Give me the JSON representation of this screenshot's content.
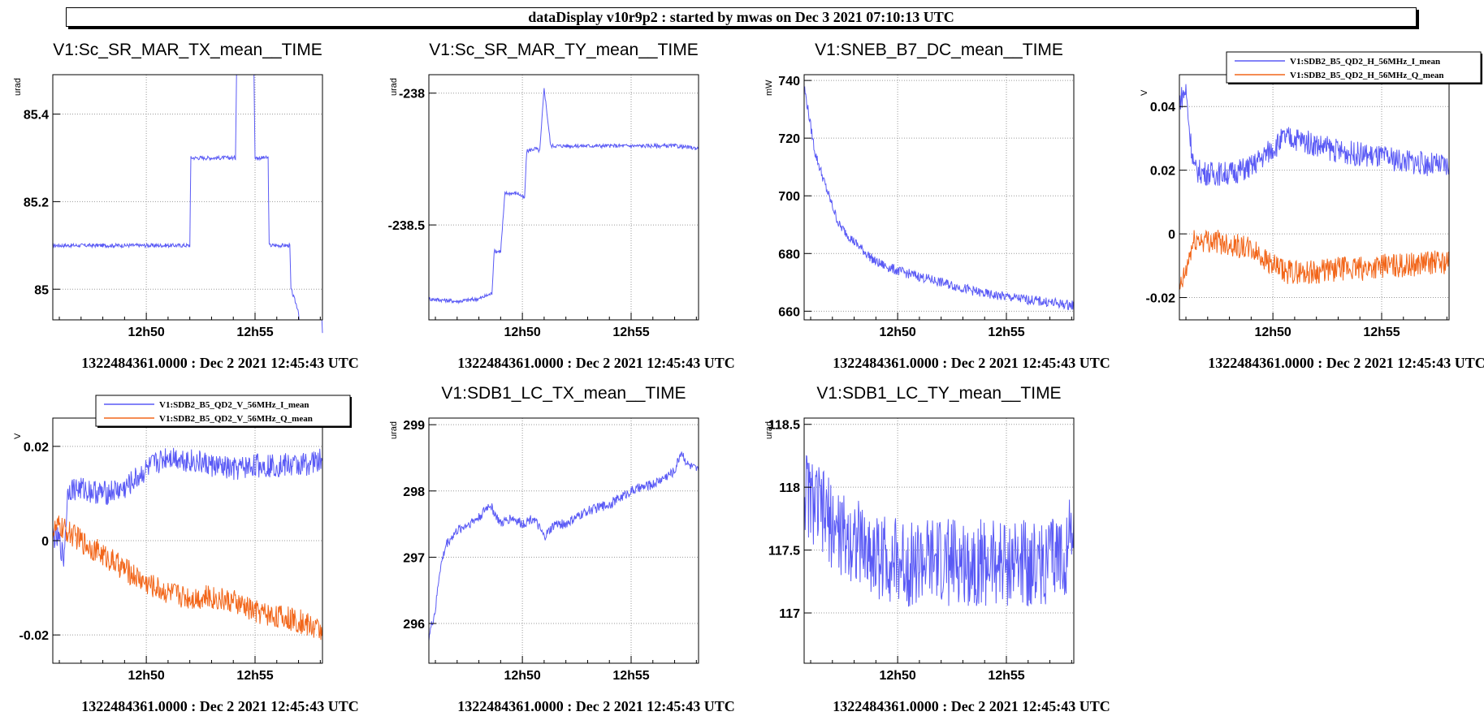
{
  "header": {
    "title": "dataDisplay v10r9p2 : started by mwas on Dec  3 2021 07:10:13 UTC"
  },
  "colors": {
    "series_blue": "#5a5af5",
    "series_orange": "#f2661a",
    "grid": "#9a9a9a",
    "frame": "#000000"
  },
  "chart_data": [
    {
      "type": "line",
      "title": "V1:Sc_SR_MAR_TX_mean__TIME",
      "ylabel": "urad",
      "xlabel": "1322484361.0000 : Dec  2 2021 12:45:43 UTC",
      "x_ticks": [
        "12h50",
        "12h55"
      ],
      "y_ticks": [
        "85",
        "85.2",
        "85.4"
      ],
      "xlim_min": [
        45.7,
        58.1
      ],
      "ylim": [
        84.93,
        85.49
      ],
      "series": [
        {
          "color": "#5a5af5",
          "x": [
            45.7,
            52.0,
            52.05,
            54.1,
            54.15,
            54.95,
            55.0,
            55.6,
            55.65,
            56.6,
            56.65,
            57.0,
            57.05,
            58.1
          ],
          "y": [
            85.1,
            85.1,
            85.3,
            85.3,
            85.5,
            85.5,
            85.3,
            85.3,
            85.1,
            85.1,
            85.0,
            84.95,
            84.9,
            84.9
          ]
        }
      ]
    },
    {
      "type": "line",
      "title": "V1:Sc_SR_MAR_TY_mean__TIME",
      "ylabel": "urad",
      "xlabel": "1322484361.0000 : Dec  2 2021 12:45:43 UTC",
      "x_ticks": [
        "12h50",
        "12h55"
      ],
      "y_ticks": [
        "-238.5",
        "-238"
      ],
      "xlim_min": [
        45.7,
        58.1
      ],
      "ylim": [
        -238.86,
        -237.93
      ],
      "series": [
        {
          "color": "#5a5af5",
          "x": [
            45.7,
            47.0,
            48.0,
            48.6,
            48.7,
            49.0,
            49.2,
            49.8,
            50.1,
            50.2,
            50.6,
            50.8,
            51.0,
            51.3,
            53.0,
            55.0,
            57.0,
            58.1
          ],
          "y": [
            -238.78,
            -238.79,
            -238.78,
            -238.76,
            -238.6,
            -238.6,
            -238.38,
            -238.38,
            -238.4,
            -238.22,
            -238.21,
            -238.22,
            -237.98,
            -238.2,
            -238.2,
            -238.2,
            -238.2,
            -238.21
          ]
        }
      ]
    },
    {
      "type": "line",
      "title": "V1:SNEB_B7_DC_mean__TIME",
      "ylabel": "mW",
      "xlabel": "1322484361.0000 : Dec  2 2021 12:45:43 UTC",
      "x_ticks": [
        "12h50",
        "12h55"
      ],
      "y_ticks": [
        "660",
        "680",
        "700",
        "720",
        "740"
      ],
      "xlim_min": [
        45.7,
        58.1
      ],
      "ylim": [
        657,
        742
      ],
      "series": [
        {
          "color": "#5a5af5",
          "x": [
            45.7,
            46.2,
            46.7,
            47.3,
            48.0,
            49.0,
            50.0,
            51.0,
            52.0,
            53.0,
            54.0,
            55.0,
            56.0,
            57.0,
            58.1
          ],
          "y": [
            738,
            715,
            703,
            690,
            684,
            677,
            674,
            672,
            670,
            668,
            666,
            665,
            664,
            663,
            662
          ]
        }
      ]
    },
    {
      "type": "line",
      "title": "",
      "ylabel": "V",
      "xlabel": "1322484361.0000 : Dec  2 2021 12:45:43 UTC",
      "x_ticks": [
        "12h50",
        "12h55"
      ],
      "y_ticks": [
        "-0.02",
        "0",
        "0.02",
        "0.04"
      ],
      "xlim_min": [
        45.7,
        58.1
      ],
      "ylim": [
        -0.027,
        0.05
      ],
      "legend": [
        "V1:SDB2_B5_QD2_H_56MHz_I_mean",
        "V1:SDB2_B5_QD2_H_56MHz_Q_mean"
      ],
      "series": [
        {
          "name": "V1:SDB2_B5_QD2_H_56MHz_I_mean",
          "color": "#5a5af5",
          "x": [
            45.7,
            46.0,
            46.2,
            46.4,
            47.0,
            48.0,
            49.0,
            49.5,
            50.0,
            50.5,
            51.0,
            52.0,
            53.0,
            54.0,
            55.0,
            56.0,
            57.0,
            58.1
          ],
          "y": [
            0.042,
            0.045,
            0.03,
            0.02,
            0.019,
            0.019,
            0.021,
            0.024,
            0.027,
            0.03,
            0.03,
            0.028,
            0.026,
            0.025,
            0.024,
            0.023,
            0.022,
            0.021
          ]
        },
        {
          "name": "V1:SDB2_B5_QD2_H_56MHz_Q_mean",
          "color": "#f2661a",
          "x": [
            45.7,
            46.0,
            46.2,
            46.4,
            47.0,
            48.0,
            49.0,
            49.5,
            50.0,
            50.5,
            51.0,
            52.0,
            53.0,
            54.0,
            55.0,
            56.0,
            57.0,
            58.1
          ],
          "y": [
            -0.018,
            -0.012,
            -0.006,
            -0.002,
            -0.002,
            -0.003,
            -0.005,
            -0.007,
            -0.01,
            -0.012,
            -0.012,
            -0.012,
            -0.011,
            -0.011,
            -0.01,
            -0.01,
            -0.009,
            -0.009
          ]
        }
      ]
    },
    {
      "type": "line",
      "title": "",
      "ylabel": "V",
      "xlabel": "1322484361.0000 : Dec  2 2021 12:45:43 UTC",
      "x_ticks": [
        "12h50",
        "12h55"
      ],
      "y_ticks": [
        "-0.02",
        "0",
        "0.02"
      ],
      "xlim_min": [
        45.7,
        58.1
      ],
      "ylim": [
        -0.026,
        0.026
      ],
      "legend": [
        "V1:SDB2_B5_QD2_V_56MHz_I_mean",
        "V1:SDB2_B5_QD2_V_56MHz_Q_mean"
      ],
      "series": [
        {
          "name": "V1:SDB2_B5_QD2_V_56MHz_I_mean",
          "color": "#5a5af5",
          "x": [
            45.7,
            46.0,
            46.2,
            46.4,
            47.0,
            48.0,
            49.0,
            50.0,
            51.0,
            52.0,
            53.0,
            54.0,
            55.0,
            56.0,
            57.0,
            58.1
          ],
          "y": [
            0.001,
            0.0,
            -0.004,
            0.011,
            0.011,
            0.01,
            0.011,
            0.015,
            0.018,
            0.017,
            0.016,
            0.015,
            0.016,
            0.016,
            0.016,
            0.017
          ]
        },
        {
          "name": "V1:SDB2_B5_QD2_V_56MHz_Q_mean",
          "color": "#f2661a",
          "x": [
            45.7,
            46.0,
            47.0,
            48.0,
            49.0,
            50.0,
            51.0,
            52.0,
            53.0,
            54.0,
            55.0,
            56.0,
            57.0,
            58.1
          ],
          "y": [
            0.002,
            0.003,
            0.0,
            -0.003,
            -0.006,
            -0.009,
            -0.011,
            -0.012,
            -0.012,
            -0.013,
            -0.015,
            -0.016,
            -0.017,
            -0.019
          ]
        }
      ]
    },
    {
      "type": "line",
      "title": "V1:SDB1_LC_TX_mean__TIME",
      "ylabel": "urad",
      "xlabel": "1322484361.0000 : Dec  2 2021 12:45:43 UTC",
      "x_ticks": [
        "12h50",
        "12h55"
      ],
      "y_ticks": [
        "296",
        "297",
        "298",
        "299"
      ],
      "xlim_min": [
        45.7,
        58.1
      ],
      "ylim": [
        295.4,
        299.1
      ],
      "series": [
        {
          "color": "#5a5af5",
          "x": [
            45.7,
            46.0,
            46.2,
            46.5,
            47.0,
            47.5,
            48.0,
            48.5,
            49.0,
            49.5,
            50.0,
            50.5,
            51.0,
            51.5,
            52.0,
            53.0,
            54.0,
            55.0,
            56.0,
            56.5,
            57.0,
            57.3,
            57.6,
            58.1
          ],
          "y": [
            295.8,
            296.2,
            296.8,
            297.2,
            297.4,
            297.5,
            297.6,
            297.8,
            297.5,
            297.6,
            297.5,
            297.6,
            297.3,
            297.5,
            297.5,
            297.7,
            297.8,
            298.0,
            298.1,
            298.2,
            298.3,
            298.6,
            298.4,
            298.3
          ]
        }
      ]
    },
    {
      "type": "line",
      "title": "V1:SDB1_LC_TY_mean__TIME",
      "ylabel": "urad",
      "xlabel": "1322484361.0000 : Dec  2 2021 12:45:43 UTC",
      "x_ticks": [
        "12h50",
        "12h55"
      ],
      "y_ticks": [
        "117",
        "117.5",
        "118",
        "118.5"
      ],
      "xlim_min": [
        45.7,
        58.1
      ],
      "ylim": [
        116.6,
        118.55
      ],
      "series": [
        {
          "color": "#5a5af5",
          "x": [
            45.7,
            46.0,
            46.5,
            47.0,
            47.5,
            48.0,
            48.5,
            49.0,
            49.5,
            50.0,
            51.0,
            52.0,
            53.0,
            54.0,
            55.0,
            56.0,
            57.0,
            57.8,
            58.1
          ],
          "y": [
            118.0,
            117.9,
            117.8,
            117.7,
            117.6,
            117.6,
            117.5,
            117.45,
            117.45,
            117.4,
            117.4,
            117.4,
            117.4,
            117.4,
            117.4,
            117.4,
            117.4,
            117.5,
            117.8
          ]
        }
      ]
    }
  ]
}
